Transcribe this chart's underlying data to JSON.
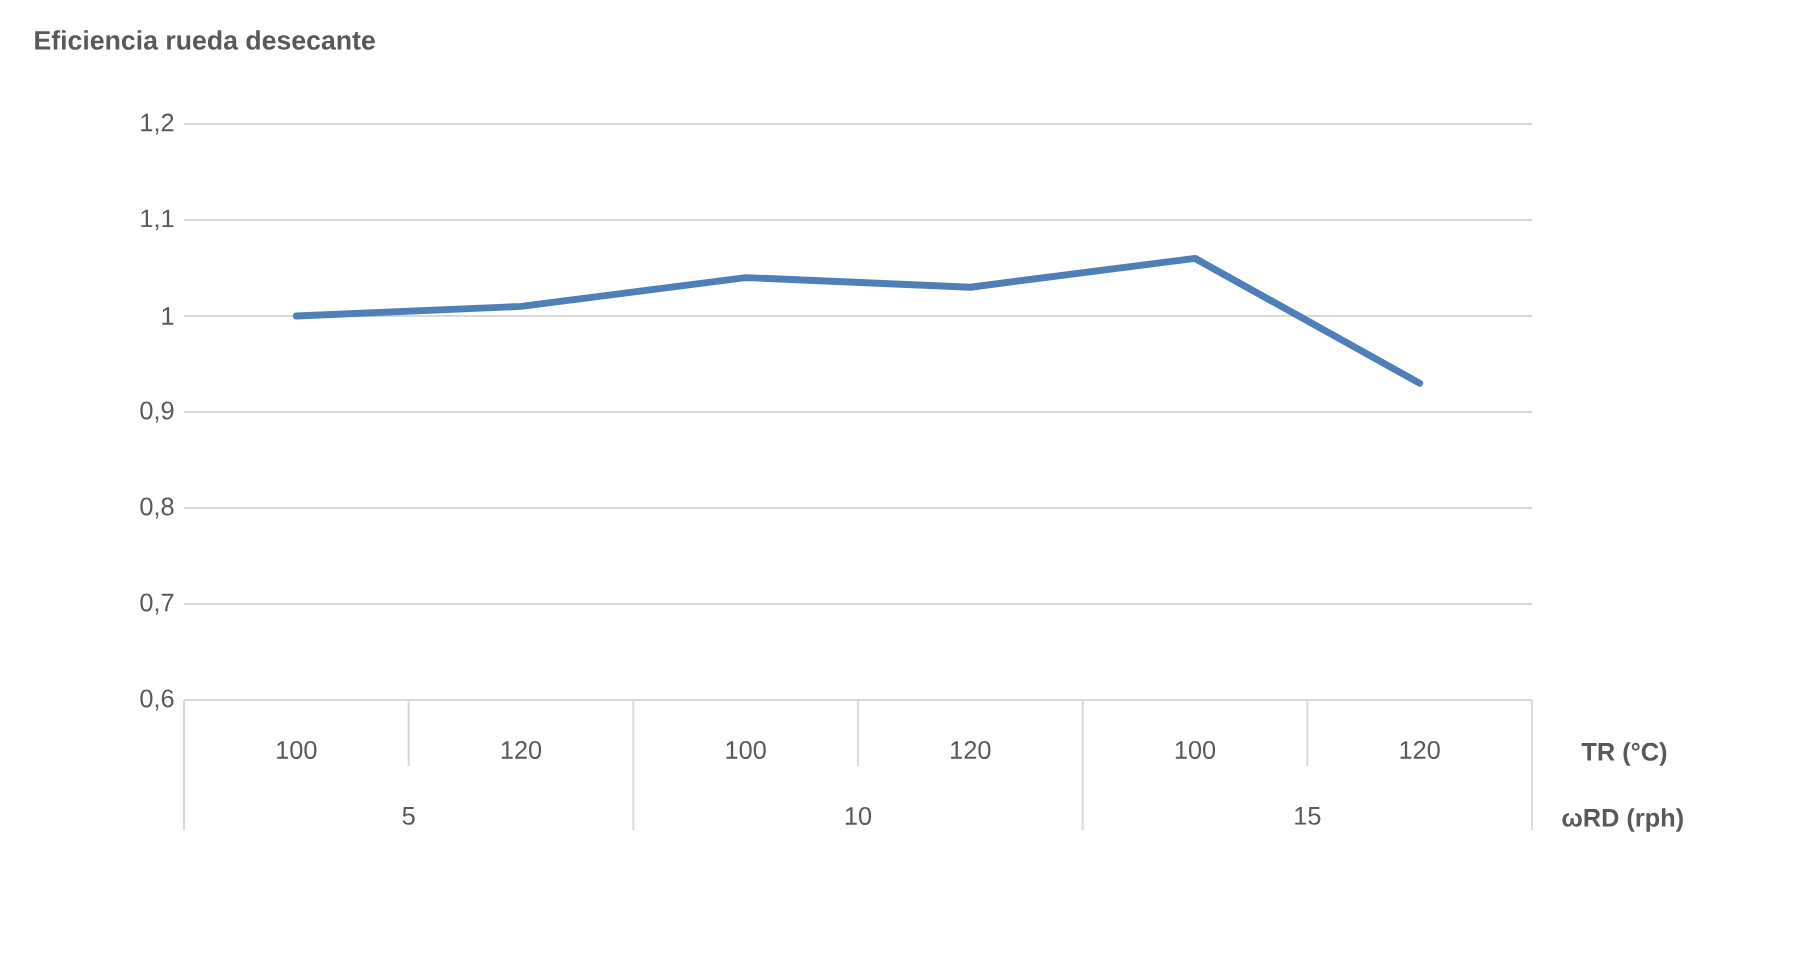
{
  "chart_data": {
    "type": "line",
    "title": "Eficiencia rueda desecante",
    "categories": [
      "100",
      "120",
      "100",
      "120",
      "100",
      "120"
    ],
    "xlabel": "TR (°C)",
    "annotations": [
      "5",
      "10",
      "15",
      "ωRD (rph)"
    ],
    "series": [
      {
        "color": "#4f7fb8",
        "values": [
          1.0,
          1.01,
          1.04,
          1.03,
          1.06,
          0.93
        ]
      }
    ],
    "ylim": [
      0.6,
      1.2
    ],
    "yticks": [
      {
        "value": 0.6,
        "label": "0,6"
      },
      {
        "value": 0.7,
        "label": "0,7"
      },
      {
        "value": 0.8,
        "label": "0,8"
      },
      {
        "value": 0.9,
        "label": "0,9"
      },
      {
        "value": 1,
        "label": "1"
      },
      {
        "value": 1.1,
        "label": "1,1"
      },
      {
        "value": 1.2,
        "label": "1,2"
      }
    ],
    "grid": "y",
    "marker": "none",
    "line_style": "solid"
  }
}
